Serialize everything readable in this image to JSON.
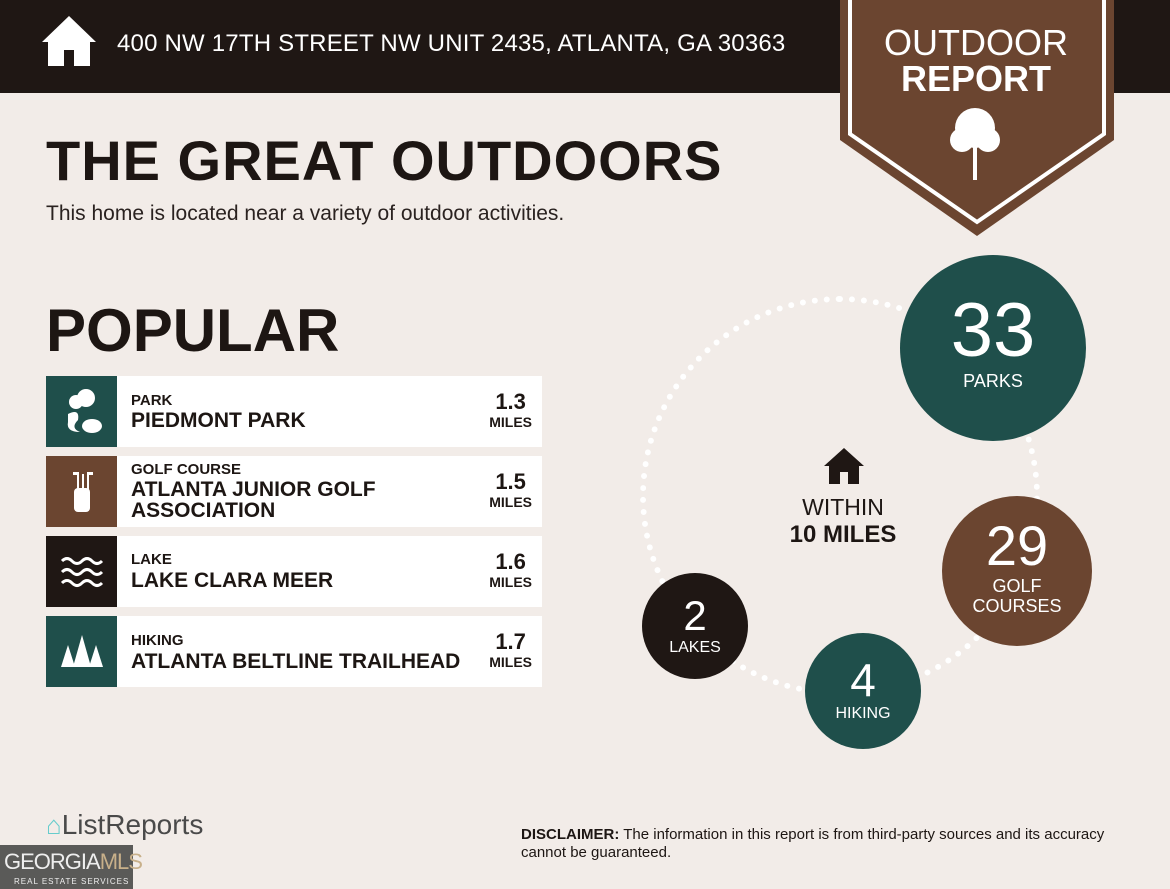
{
  "header": {
    "address": "400 NW 17TH STREET NW UNIT 2435, ATLANTA, GA 30363",
    "home_icon": "house-icon"
  },
  "badge": {
    "line1": "OUTDOOR",
    "line2": "REPORT",
    "icon": "tree-icon"
  },
  "title": "THE GREAT OUTDOORS",
  "subtitle": "This home is located near a variety of outdoor activities.",
  "popular": {
    "heading": "POPULAR",
    "items": [
      {
        "category": "PARK",
        "name": "PIEDMONT PARK",
        "distance": "1.3",
        "unit": "MILES",
        "icon": "park-icon",
        "color": "#1f4f4b"
      },
      {
        "category": "GOLF COURSE",
        "name": "ATLANTA JUNIOR GOLF ASSOCIATION",
        "distance": "1.5",
        "unit": "MILES",
        "icon": "golf-bag-icon",
        "color": "#6b4530"
      },
      {
        "category": "LAKE",
        "name": "LAKE CLARA MEER",
        "distance": "1.6",
        "unit": "MILES",
        "icon": "waves-icon",
        "color": "#1f1714"
      },
      {
        "category": "HIKING",
        "name": "ATLANTA BELTLINE TRAILHEAD",
        "distance": "1.7",
        "unit": "MILES",
        "icon": "pine-trees-icon",
        "color": "#1f4f4b"
      }
    ]
  },
  "within": {
    "line1": "WITHIN",
    "line2": "10 MILES"
  },
  "counts": {
    "parks": {
      "n": "33",
      "label": "PARKS"
    },
    "golf": {
      "n": "29",
      "label1": "GOLF",
      "label2": "COURSES"
    },
    "hiking": {
      "n": "4",
      "label": "HIKING"
    },
    "lakes": {
      "n": "2",
      "label": "LAKES"
    }
  },
  "colors": {
    "dark": "#1f1714",
    "brown": "#6b4530",
    "teal": "#1f4f4b",
    "background": "#f2ece8"
  },
  "footer": {
    "brand": "ListReports",
    "disclaimer_label": "DISCLAIMER:",
    "disclaimer": " The information in this report is from third-party sources and its accuracy cannot be guaranteed.",
    "mls1": "GEORGIA",
    "mls2": "MLS",
    "mls3": "REAL ESTATE SERVICES"
  }
}
